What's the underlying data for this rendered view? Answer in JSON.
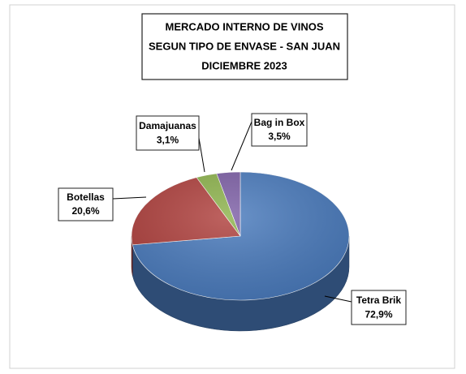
{
  "chart_data": {
    "type": "pie",
    "title": [
      "MERCADO INTERNO DE VINOS",
      "SEGUN TIPO DE ENVASE - SAN JUAN",
      "DICIEMBRE 2023"
    ],
    "categories": [
      "Tetra Brik",
      "Botellas",
      "Damajuanas",
      "Bag in Box"
    ],
    "values": [
      72.9,
      20.6,
      3.1,
      3.5
    ],
    "value_labels": [
      "72,9%",
      "20,6%",
      "3,1%",
      "3,5%"
    ],
    "colors": [
      "#4a7bbd",
      "#b0413e",
      "#8db34c",
      "#7d5fa6"
    ]
  }
}
